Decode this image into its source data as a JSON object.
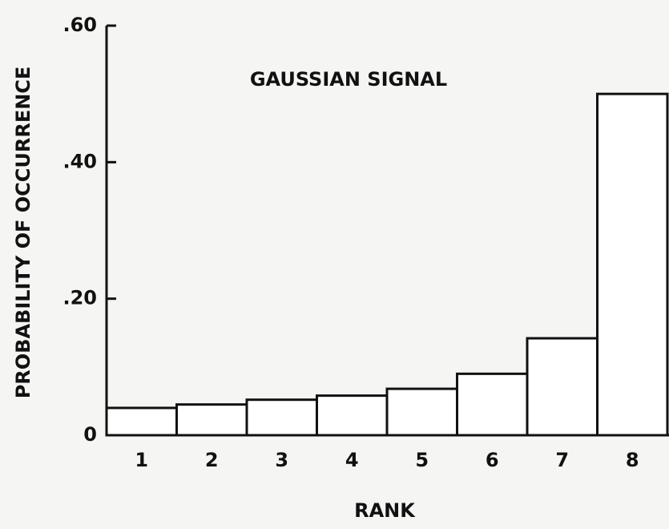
{
  "chart_data": {
    "type": "bar",
    "title": "GAUSSIAN SIGNAL",
    "x_label": "RANK",
    "y_label": "PROBABILITY OF OCCURRENCE",
    "categories": [
      "1",
      "2",
      "3",
      "4",
      "5",
      "6",
      "7",
      "8"
    ],
    "values": [
      0.04,
      0.045,
      0.052,
      0.058,
      0.068,
      0.09,
      0.142,
      0.5
    ],
    "color": "#ffffff",
    "ylim": [
      0,
      0.6
    ],
    "yticks": [
      0,
      {
        "value": 0.2,
        "label": ".20"
      },
      {
        "value": 0.4,
        "label": ".40"
      },
      {
        "value": 0.6,
        "label": ".60"
      }
    ],
    "grid": false
  }
}
